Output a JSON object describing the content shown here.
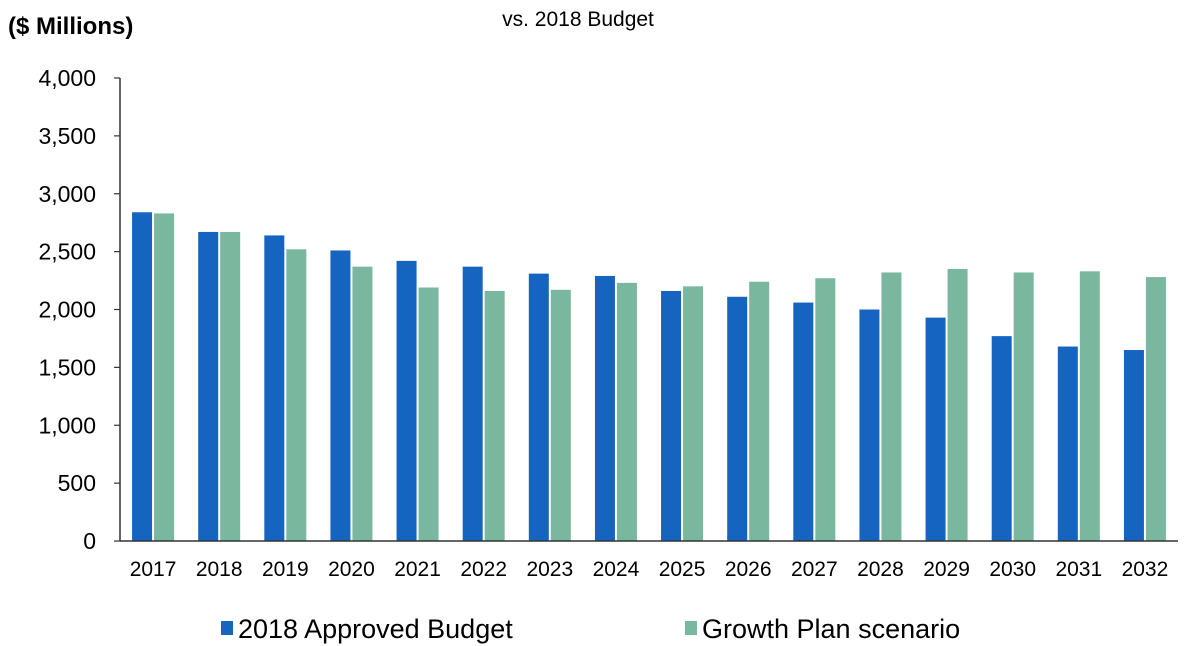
{
  "chart_data": {
    "type": "bar",
    "title": "vs. 2018 Budget",
    "unit_label": "($ Millions)",
    "ylim": [
      0,
      4000
    ],
    "y_ticks": [
      0,
      500,
      1000,
      1500,
      2000,
      2500,
      3000,
      3500,
      4000
    ],
    "y_tick_labels": [
      "0",
      "500",
      "1,000",
      "1,500",
      "2,000",
      "2,500",
      "3,000",
      "3,500",
      "4,000"
    ],
    "categories": [
      "2017",
      "2018",
      "2019",
      "2020",
      "2021",
      "2022",
      "2023",
      "2024",
      "2025",
      "2026",
      "2027",
      "2028",
      "2029",
      "2030",
      "2031",
      "2032"
    ],
    "series": [
      {
        "name": "2018 Approved Budget",
        "color": "#1565c0",
        "values": [
          2840,
          2670,
          2640,
          2510,
          2420,
          2370,
          2310,
          2290,
          2160,
          2110,
          2060,
          2000,
          1930,
          1770,
          1680,
          1650
        ]
      },
      {
        "name": "Growth Plan scenario",
        "color": "#7ab79f",
        "values": [
          2830,
          2670,
          2520,
          2370,
          2190,
          2160,
          2170,
          2230,
          2200,
          2240,
          2270,
          2320,
          2350,
          2320,
          2330,
          2280
        ]
      }
    ],
    "grid": false,
    "legend_position": "bottom"
  }
}
